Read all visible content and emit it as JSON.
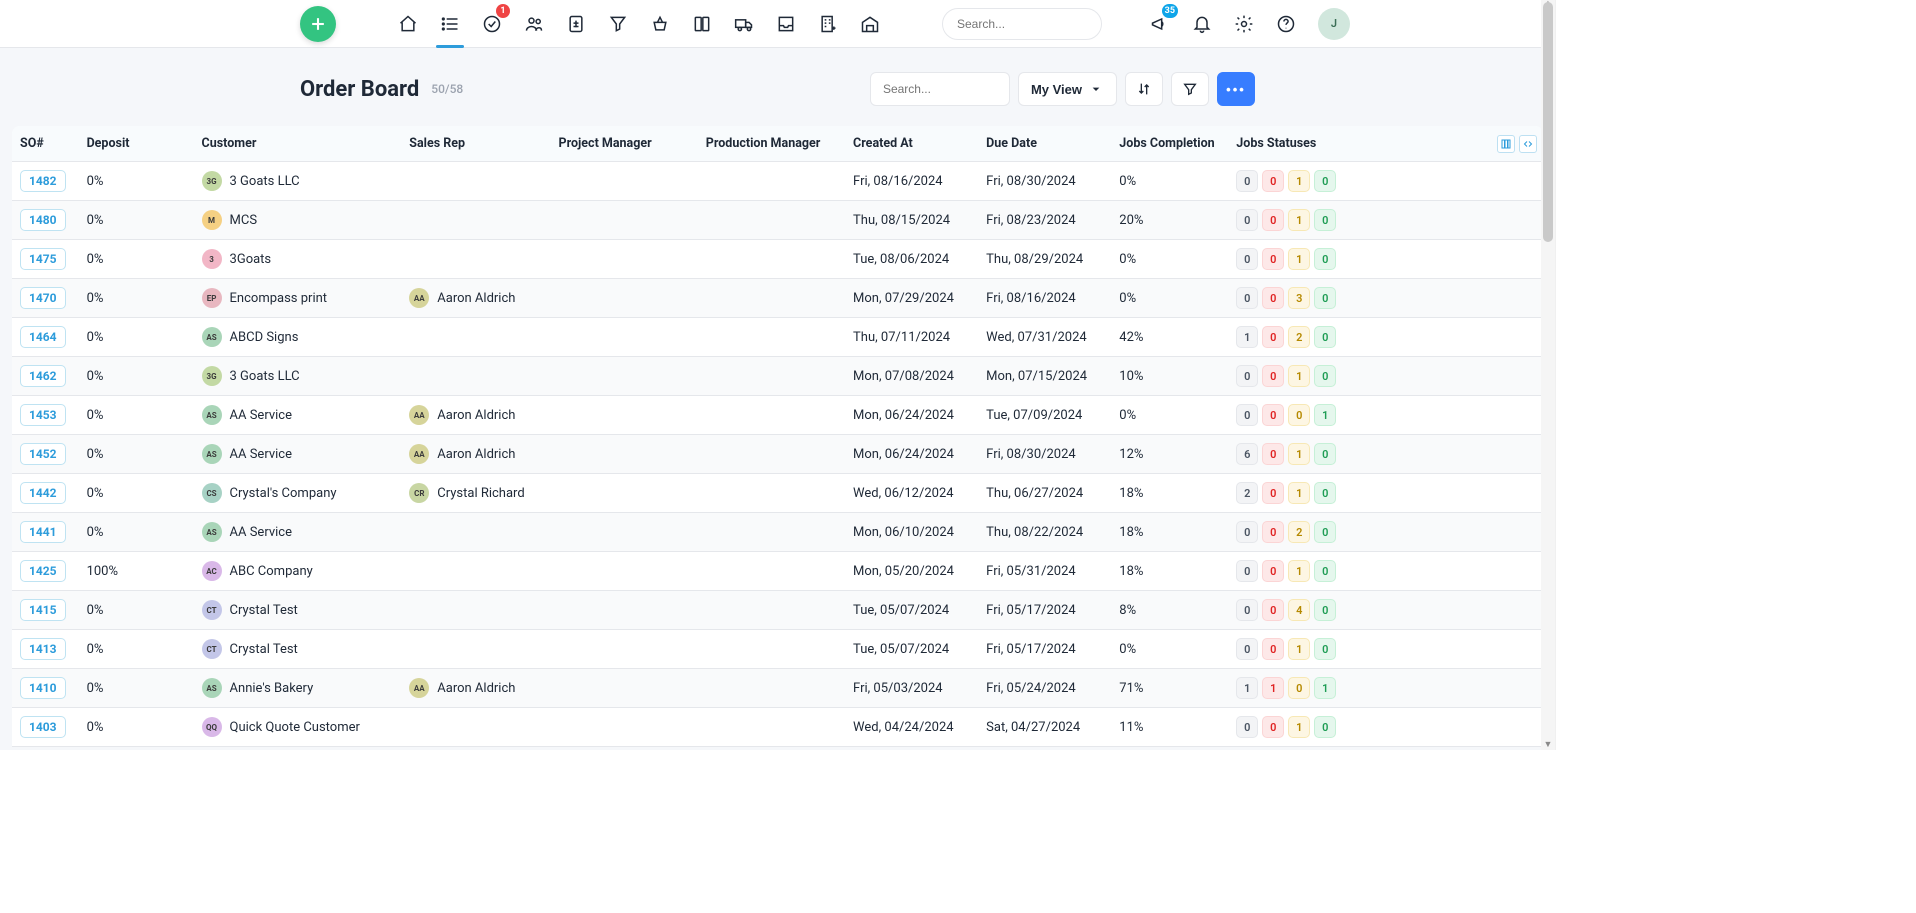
{
  "global": {
    "search_placeholder": "Search...",
    "tasks_badge": "1",
    "announce_badge": "35",
    "user_initial": "J"
  },
  "board": {
    "title": "Order Board",
    "count": "50/58",
    "search_placeholder": "Search...",
    "view_label": "My View",
    "more_label": "•••"
  },
  "columns": {
    "so": "SO#",
    "deposit": "Deposit",
    "customer": "Customer",
    "sales_rep": "Sales Rep",
    "project_manager": "Project Manager",
    "production_manager": "Production Manager",
    "created_at": "Created At",
    "due_date": "Due Date",
    "jobs_completion": "Jobs Completion",
    "jobs_statuses": "Jobs Statuses"
  },
  "col_widths": {
    "so": 66,
    "deposit": 114,
    "customer": 206,
    "sales_rep": 148,
    "project_manager": 146,
    "production_manager": 146,
    "created": 132,
    "due": 132,
    "completion": 116,
    "statuses": 312
  },
  "rows": [
    {
      "so": "1482",
      "deposit": "0%",
      "cust": "3 Goats LLC",
      "ci": "3G",
      "cc": "#c3d9a4",
      "rep": "",
      "ri": "",
      "rc": "",
      "created": "Fri, 08/16/2024",
      "due": "Fri, 08/30/2024",
      "comp": "0%",
      "s": [
        0,
        0,
        1,
        0
      ]
    },
    {
      "so": "1480",
      "deposit": "0%",
      "cust": "MCS",
      "ci": "M",
      "cc": "#f5d083",
      "rep": "",
      "ri": "",
      "rc": "",
      "created": "Thu, 08/15/2024",
      "due": "Fri, 08/23/2024",
      "comp": "20%",
      "s": [
        0,
        0,
        1,
        0
      ]
    },
    {
      "so": "1475",
      "deposit": "0%",
      "cust": "3Goats",
      "ci": "3",
      "cc": "#f2b6c6",
      "rep": "",
      "ri": "",
      "rc": "",
      "created": "Tue, 08/06/2024",
      "due": "Thu, 08/29/2024",
      "comp": "0%",
      "s": [
        0,
        0,
        1,
        0
      ]
    },
    {
      "so": "1470",
      "deposit": "0%",
      "cust": "Encompass print",
      "ci": "EP",
      "cc": "#e8b7c0",
      "rep": "Aaron Aldrich",
      "ri": "AA",
      "rc": "#d6d49a",
      "created": "Mon, 07/29/2024",
      "due": "Fri, 08/16/2024",
      "comp": "0%",
      "s": [
        0,
        0,
        3,
        0
      ]
    },
    {
      "so": "1464",
      "deposit": "0%",
      "cust": "ABCD Signs",
      "ci": "AS",
      "cc": "#a9d5b8",
      "rep": "",
      "ri": "",
      "rc": "",
      "created": "Thu, 07/11/2024",
      "due": "Wed, 07/31/2024",
      "comp": "42%",
      "s": [
        1,
        0,
        2,
        0
      ]
    },
    {
      "so": "1462",
      "deposit": "0%",
      "cust": "3 Goats LLC",
      "ci": "3G",
      "cc": "#c3d9a4",
      "rep": "",
      "ri": "",
      "rc": "",
      "created": "Mon, 07/08/2024",
      "due": "Mon, 07/15/2024",
      "comp": "10%",
      "s": [
        0,
        0,
        1,
        0
      ]
    },
    {
      "so": "1453",
      "deposit": "0%",
      "cust": "AA Service",
      "ci": "AS",
      "cc": "#a9d5b8",
      "rep": "Aaron Aldrich",
      "ri": "AA",
      "rc": "#d6d49a",
      "created": "Mon, 06/24/2024",
      "due": "Tue, 07/09/2024",
      "comp": "0%",
      "s": [
        0,
        0,
        0,
        1
      ]
    },
    {
      "so": "1452",
      "deposit": "0%",
      "cust": "AA Service",
      "ci": "AS",
      "cc": "#a9d5b8",
      "rep": "Aaron Aldrich",
      "ri": "AA",
      "rc": "#d6d49a",
      "created": "Mon, 06/24/2024",
      "due": "Fri, 08/30/2024",
      "comp": "12%",
      "s": [
        6,
        0,
        1,
        0
      ]
    },
    {
      "so": "1442",
      "deposit": "0%",
      "cust": "Crystal's Company",
      "ci": "CS",
      "cc": "#a7d2c5",
      "rep": "Crystal Richard",
      "ri": "CR",
      "rc": "#c8d6a3",
      "created": "Wed, 06/12/2024",
      "due": "Thu, 06/27/2024",
      "comp": "18%",
      "s": [
        2,
        0,
        1,
        0
      ]
    },
    {
      "so": "1441",
      "deposit": "0%",
      "cust": "AA Service",
      "ci": "AS",
      "cc": "#a9d5b8",
      "rep": "",
      "ri": "",
      "rc": "",
      "created": "Mon, 06/10/2024",
      "due": "Thu, 08/22/2024",
      "comp": "18%",
      "s": [
        0,
        0,
        2,
        0
      ]
    },
    {
      "so": "1425",
      "deposit": "100%",
      "cust": "ABC Company",
      "ci": "AC",
      "cc": "#d9b8e8",
      "rep": "",
      "ri": "",
      "rc": "",
      "created": "Mon, 05/20/2024",
      "due": "Fri, 05/31/2024",
      "comp": "18%",
      "s": [
        0,
        0,
        1,
        0
      ]
    },
    {
      "so": "1415",
      "deposit": "0%",
      "cust": "Crystal Test",
      "ci": "CT",
      "cc": "#c3c6e8",
      "rep": "",
      "ri": "",
      "rc": "",
      "created": "Tue, 05/07/2024",
      "due": "Fri, 05/17/2024",
      "comp": "8%",
      "s": [
        0,
        0,
        4,
        0
      ]
    },
    {
      "so": "1413",
      "deposit": "0%",
      "cust": "Crystal Test",
      "ci": "CT",
      "cc": "#c3c6e8",
      "rep": "",
      "ri": "",
      "rc": "",
      "created": "Tue, 05/07/2024",
      "due": "Fri, 05/17/2024",
      "comp": "0%",
      "s": [
        0,
        0,
        1,
        0
      ]
    },
    {
      "so": "1410",
      "deposit": "0%",
      "cust": "Annie's Bakery",
      "ci": "AS",
      "cc": "#a9d5b8",
      "rep": "Aaron Aldrich",
      "ri": "AA",
      "rc": "#d6d49a",
      "created": "Fri, 05/03/2024",
      "due": "Fri, 05/24/2024",
      "comp": "71%",
      "s": [
        1,
        1,
        0,
        1
      ]
    },
    {
      "so": "1403",
      "deposit": "0%",
      "cust": "Quick Quote Customer",
      "ci": "QQ",
      "cc": "#d9b8e8",
      "rep": "",
      "ri": "",
      "rc": "",
      "created": "Wed, 04/24/2024",
      "due": "Sat, 04/27/2024",
      "comp": "11%",
      "s": [
        0,
        0,
        1,
        0
      ]
    }
  ]
}
